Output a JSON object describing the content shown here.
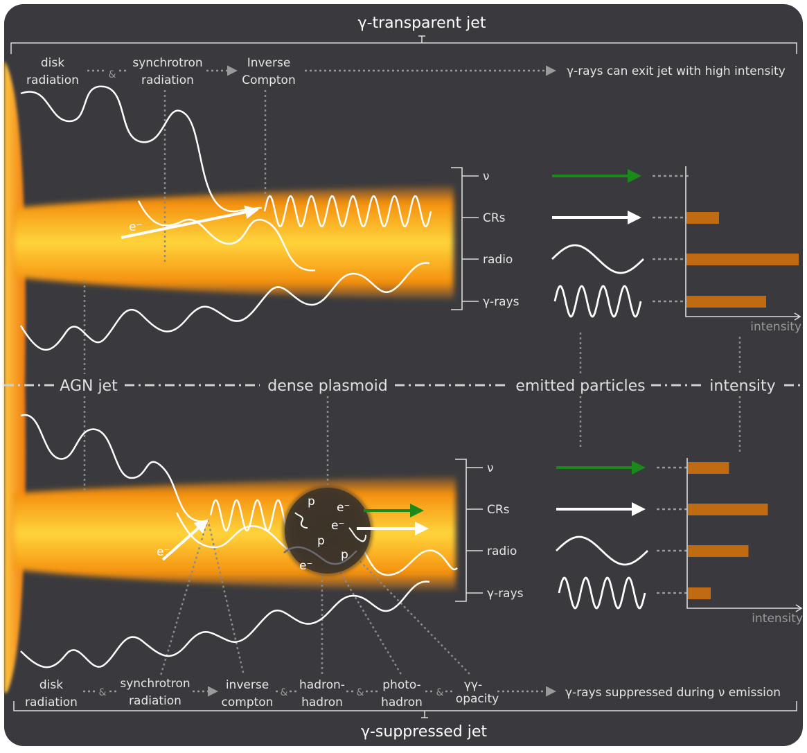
{
  "top": {
    "title": "γ-transparent jet",
    "processes": [
      "disk radiation",
      "synchrotron radiation",
      "Inverse Compton"
    ],
    "process_lines": [
      [
        "disk",
        "radiation"
      ],
      [
        "synchrotron",
        "radiation"
      ],
      [
        "Inverse",
        "Compton"
      ]
    ],
    "amp": "&",
    "result": "γ-rays can exit jet with high intensity",
    "electron": "e⁻",
    "particles": [
      "ν",
      "CRs",
      "radio",
      "γ-rays"
    ],
    "intensity": [
      0.0,
      0.29,
      1.0,
      0.71
    ],
    "axis_label": "intensity"
  },
  "middle": {
    "labels": [
      "AGN jet",
      "dense plasmoid",
      "emitted particles",
      "intensity"
    ]
  },
  "bottom": {
    "title": "γ-suppressed jet",
    "process_lines": [
      [
        "disk",
        "radiation"
      ],
      [
        "synchrotron",
        "radiation"
      ],
      [
        "inverse",
        "compton"
      ],
      [
        "hadron-",
        "hadron"
      ],
      [
        "photo-",
        "hadron"
      ],
      [
        "γγ-",
        "opacity"
      ]
    ],
    "amp": "&",
    "result": "γ-rays suppressed during ν emission",
    "electron": "e⁻",
    "plasmoid_particles": [
      "p",
      "e⁻",
      "e⁻",
      "p",
      "p",
      "e⁻"
    ],
    "particles": [
      "ν",
      "CRs",
      "radio",
      "γ-rays"
    ],
    "intensity": [
      0.36,
      0.7,
      0.53,
      0.2
    ],
    "axis_label": "intensity"
  },
  "colors": {
    "background": "#3a3a3e",
    "neutrino": "#1a8a1a",
    "bar": "#c06a12",
    "jet_core": "#ffd23a",
    "jet_edge": "#f07a10"
  }
}
